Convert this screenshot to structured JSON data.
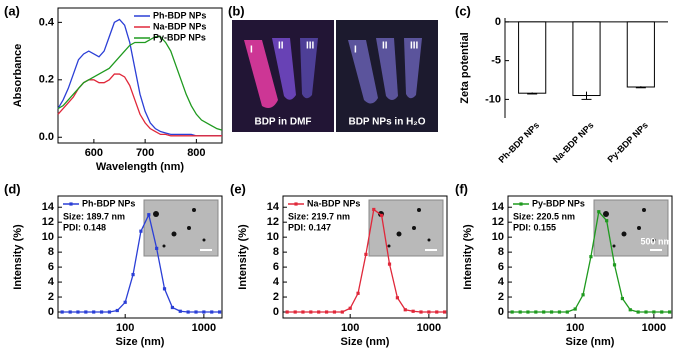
{
  "panel_labels": [
    "(a)",
    "(b)",
    "(c)",
    "(d)",
    "(e)",
    "(f)"
  ],
  "photo": {
    "panels": [
      {
        "caption": "BDP in DMF",
        "labels": [
          "I",
          "II",
          "III"
        ]
      },
      {
        "caption": "BDP NPs in H₂O",
        "labels": [
          "I",
          "II",
          "III"
        ]
      }
    ]
  },
  "chart_data": [
    {
      "type": "line",
      "xlabel": "Wavelength (nm)",
      "ylabel": "Absorbance",
      "x": [
        530,
        540,
        550,
        560,
        570,
        580,
        590,
        600,
        610,
        620,
        630,
        640,
        650,
        660,
        670,
        680,
        690,
        700,
        710,
        720,
        730,
        740,
        750,
        760,
        770,
        780,
        790,
        800,
        810,
        820,
        830,
        840,
        850
      ],
      "series": [
        {
          "name": "Ph-BDP NPs",
          "color": "#2b3fd6",
          "values": [
            0.1,
            0.13,
            0.17,
            0.22,
            0.27,
            0.29,
            0.3,
            0.29,
            0.28,
            0.3,
            0.35,
            0.4,
            0.41,
            0.39,
            0.33,
            0.24,
            0.15,
            0.09,
            0.05,
            0.03,
            0.02,
            0.015,
            0.01,
            0.01,
            0.01,
            0.01,
            0.01,
            0.005,
            0.005,
            0.005,
            0.005,
            0.005,
            0.005
          ]
        },
        {
          "name": "Na-BDP NPs",
          "color": "#e0283a",
          "values": [
            0.08,
            0.1,
            0.12,
            0.14,
            0.17,
            0.19,
            0.2,
            0.2,
            0.19,
            0.19,
            0.2,
            0.22,
            0.22,
            0.21,
            0.18,
            0.13,
            0.08,
            0.05,
            0.03,
            0.02,
            0.01,
            0.01,
            0.005,
            0.005,
            0.005,
            0.005,
            0.005,
            0.005,
            0.005,
            0.005,
            0.005,
            0.005,
            0.005
          ]
        },
        {
          "name": "Py-BDP NPs",
          "color": "#1f9a1f",
          "values": [
            0.1,
            0.11,
            0.13,
            0.15,
            0.17,
            0.19,
            0.2,
            0.21,
            0.22,
            0.23,
            0.24,
            0.26,
            0.28,
            0.3,
            0.32,
            0.33,
            0.33,
            0.33,
            0.34,
            0.35,
            0.35,
            0.33,
            0.3,
            0.25,
            0.2,
            0.15,
            0.11,
            0.08,
            0.06,
            0.05,
            0.04,
            0.03,
            0.025
          ]
        }
      ],
      "xlim": [
        530,
        850
      ],
      "ylim": [
        -0.02,
        0.45
      ],
      "xticks": [
        600,
        700,
        800
      ],
      "yticks": [
        {
          "value": 0,
          "label": "0.0"
        },
        0.2,
        0.4
      ],
      "legend": "upper right"
    },
    {
      "type": "bar",
      "ylabel": "Zeta potential",
      "categories": [
        "Ph-BDP NPs",
        "Na-BDP NPs",
        "Py-BDP NPs"
      ],
      "values": [
        -9.2,
        -9.5,
        -8.4
      ],
      "errors": [
        0.1,
        0.5,
        0.1
      ],
      "color": "#ffffff",
      "ylim": [
        -12.4,
        0.5
      ],
      "yticks": [
        0,
        -5,
        -10
      ]
    },
    {
      "type": "line",
      "xlog": true,
      "markers": true,
      "xlabel": "Size (nm)",
      "ylabel": "Intensity (%)",
      "x": [
        15.8,
        20,
        25.1,
        31.6,
        39.8,
        50.1,
        63.1,
        79.4,
        100,
        125.9,
        158.5,
        199.5,
        251.2,
        316.2,
        398.1,
        501.2,
        631,
        794.3,
        1000,
        1258.9,
        1584.9
      ],
      "series": [
        {
          "name": "Ph-BDP NPs",
          "color": "#2b3fd6",
          "values": [
            0,
            0,
            0,
            0,
            0,
            0,
            0,
            0.2,
            1.3,
            5.0,
            10.8,
            13.0,
            8.5,
            3.1,
            0.6,
            0.1,
            0,
            0,
            0,
            0,
            0
          ]
        }
      ],
      "annotations": [
        "Size: 189.7 nm",
        "PDI: 0.148"
      ],
      "xlim": [
        14,
        1700
      ],
      "ylim": [
        -0.8,
        15.5
      ],
      "xticks": [
        100,
        1000
      ],
      "yticks": [
        0,
        2,
        4,
        6,
        8,
        10,
        12,
        14
      ],
      "legend": "upper left"
    },
    {
      "type": "line",
      "xlog": true,
      "markers": true,
      "xlabel": "Size (nm)",
      "ylabel": "Intensity (%)",
      "x": [
        15.8,
        20,
        25.1,
        31.6,
        39.8,
        50.1,
        63.1,
        79.4,
        100,
        125.9,
        158.5,
        199.5,
        251.2,
        316.2,
        398.1,
        501.2,
        631,
        794.3,
        1000,
        1258.9,
        1584.9
      ],
      "series": [
        {
          "name": "Na-BDP NPs",
          "color": "#e0283a",
          "values": [
            0,
            0,
            0,
            0,
            0,
            0,
            0,
            0,
            0.5,
            2.5,
            7.7,
            13.7,
            12.9,
            6.4,
            1.9,
            0.3,
            0.1,
            0,
            0,
            0,
            0
          ]
        }
      ],
      "annotations": [
        "Size: 219.7 nm",
        "PDI: 0.147"
      ],
      "xlim": [
        14,
        1700
      ],
      "ylim": [
        -0.8,
        15.5
      ],
      "xticks": [
        100,
        1000
      ],
      "yticks": [
        0,
        2,
        4,
        6,
        8,
        10,
        12,
        14
      ],
      "legend": "upper left"
    },
    {
      "type": "line",
      "xlog": true,
      "markers": true,
      "xlabel": "Size (nm)",
      "ylabel": "Intensity (%)",
      "x": [
        15.8,
        20,
        25.1,
        31.6,
        39.8,
        50.1,
        63.1,
        79.4,
        100,
        125.9,
        158.5,
        199.5,
        251.2,
        316.2,
        398.1,
        501.2,
        631,
        794.3,
        1000,
        1258.9,
        1584.9
      ],
      "series": [
        {
          "name": "Py-BDP NPs",
          "color": "#1f9a1f",
          "values": [
            0,
            0,
            0,
            0,
            0,
            0,
            0,
            0,
            0.4,
            2.3,
            7.4,
            13.4,
            12.2,
            6.3,
            1.8,
            0.3,
            0,
            0,
            0,
            0,
            0
          ]
        }
      ],
      "annotations": [
        "Size: 220.5 nm",
        "PDI: 0.155"
      ],
      "scale_bar_label": "500 nm",
      "xlim": [
        14,
        1700
      ],
      "ylim": [
        -0.8,
        15.5
      ],
      "xticks": [
        100,
        1000
      ],
      "yticks": [
        0,
        2,
        4,
        6,
        8,
        10,
        12,
        14
      ],
      "legend": "upper left"
    }
  ]
}
